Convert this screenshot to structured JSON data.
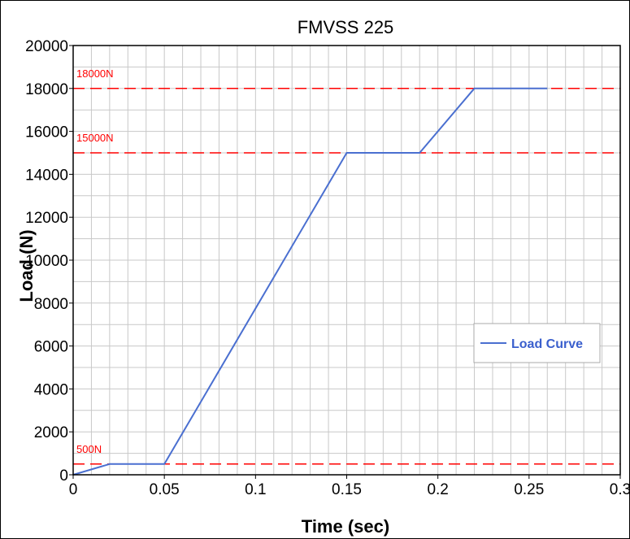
{
  "chart_data": {
    "type": "line",
    "title": "FMVSS 225",
    "xlabel": "Time (sec)",
    "ylabel": "Load (N)",
    "xlim": [
      0,
      0.3
    ],
    "ylim": [
      0,
      20000
    ],
    "x_ticks": [
      "0",
      "0.05",
      "0.1",
      "0.15",
      "0.2",
      "0.25",
      "0.3"
    ],
    "y_ticks": [
      "0",
      "2000",
      "4000",
      "6000",
      "8000",
      "10000",
      "12000",
      "14000",
      "16000",
      "18000",
      "20000"
    ],
    "grid": true,
    "legend_position": "right",
    "series": [
      {
        "name": "Load Curve",
        "color": "#4a6fd0",
        "x": [
          0,
          0.02,
          0.05,
          0.15,
          0.19,
          0.22,
          0.26
        ],
        "y": [
          0,
          500,
          500,
          15000,
          15000,
          18000,
          18000
        ]
      }
    ],
    "reference_lines": [
      {
        "y": 18000,
        "label": "18000N",
        "color": "#ff0000"
      },
      {
        "y": 15000,
        "label": "15000N",
        "color": "#ff0000"
      },
      {
        "y": 500,
        "label": "500N",
        "color": "#ff0000"
      }
    ]
  }
}
